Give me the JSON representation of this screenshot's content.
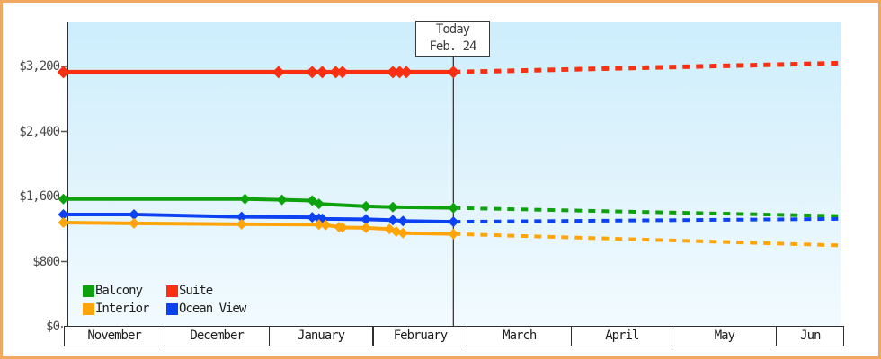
{
  "today_flag": {
    "label": "Today",
    "date": "Feb. 24"
  },
  "legend": {
    "items": [
      {
        "label": "Balcony",
        "color": "#0da10d"
      },
      {
        "label": "Suite",
        "color": "#f93011"
      },
      {
        "label": "Interior",
        "color": "#ffa50a"
      },
      {
        "label": "Ocean View",
        "color": "#0c42f2"
      }
    ]
  },
  "chart_data": {
    "type": "line",
    "title": "",
    "xlabel": "",
    "ylabel": "",
    "ylim": [
      0,
      3750
    ],
    "grid": false,
    "legend_position": "bottom-left",
    "y_axis": {
      "ticks": [
        {
          "label": "$3,200",
          "value": 3200
        },
        {
          "label": "$2,400",
          "value": 2400
        },
        {
          "label": "$1,600",
          "value": 1600
        },
        {
          "label": "$800",
          "value": 800
        },
        {
          "label": "$0",
          "value": 0
        }
      ]
    },
    "x_axis": {
      "months": [
        {
          "label": "November",
          "days": 30
        },
        {
          "label": "December",
          "days": 31
        },
        {
          "label": "January",
          "days": 31
        },
        {
          "label": "February",
          "days": 28
        },
        {
          "label": "March",
          "days": 31
        },
        {
          "label": "April",
          "days": 30
        },
        {
          "label": "May",
          "days": 31
        },
        {
          "label": "Jun",
          "days": 20
        }
      ]
    },
    "today": {
      "label": "Today",
      "date": "Feb. 24",
      "day": 116
    },
    "series": [
      {
        "name": "Suite",
        "color": "#f93011",
        "width": 5,
        "marker": 7,
        "solid": [
          [
            0,
            3130
          ],
          [
            64,
            3130
          ],
          [
            74,
            3130
          ],
          [
            77,
            3130
          ],
          [
            81,
            3130
          ],
          [
            83,
            3130
          ],
          [
            98,
            3130
          ],
          [
            100,
            3130
          ],
          [
            102,
            3130
          ],
          [
            116,
            3130
          ]
        ],
        "dashed": [
          [
            116,
            3130
          ],
          [
            231,
            3240
          ]
        ]
      },
      {
        "name": "Balcony",
        "color": "#0da10d",
        "width": 4,
        "marker": 6,
        "solid": [
          [
            0,
            1570
          ],
          [
            54,
            1570
          ],
          [
            65,
            1560
          ],
          [
            74,
            1550
          ],
          [
            76,
            1510
          ],
          [
            90,
            1480
          ],
          [
            98,
            1470
          ],
          [
            116,
            1460
          ]
        ],
        "dashed": [
          [
            116,
            1460
          ],
          [
            231,
            1360
          ]
        ]
      },
      {
        "name": "Ocean View",
        "color": "#0c42f2",
        "width": 4,
        "marker": 6,
        "solid": [
          [
            0,
            1380
          ],
          [
            21,
            1380
          ],
          [
            53,
            1350
          ],
          [
            74,
            1345
          ],
          [
            76,
            1330
          ],
          [
            77,
            1325
          ],
          [
            90,
            1320
          ],
          [
            98,
            1310
          ],
          [
            101,
            1300
          ],
          [
            116,
            1290
          ]
        ],
        "dashed": [
          [
            116,
            1290
          ],
          [
            231,
            1325
          ]
        ]
      },
      {
        "name": "Interior",
        "color": "#ffa50a",
        "width": 4,
        "marker": 6,
        "solid": [
          [
            0,
            1280
          ],
          [
            21,
            1270
          ],
          [
            53,
            1260
          ],
          [
            76,
            1255
          ],
          [
            78,
            1250
          ],
          [
            82,
            1225
          ],
          [
            83,
            1220
          ],
          [
            90,
            1215
          ],
          [
            97,
            1200
          ],
          [
            99,
            1170
          ],
          [
            101,
            1150
          ],
          [
            116,
            1140
          ]
        ],
        "dashed": [
          [
            116,
            1140
          ],
          [
            231,
            1000
          ]
        ]
      }
    ]
  }
}
